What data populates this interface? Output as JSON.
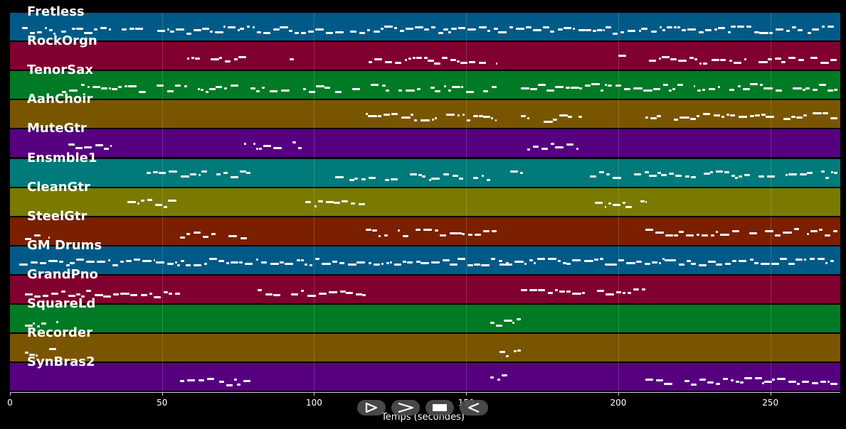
{
  "app": {
    "xlabel": "Temps (secondes)",
    "ticks": [
      0,
      50,
      100,
      150,
      200,
      250
    ],
    "xlim": [
      0,
      273
    ]
  },
  "controls": [
    {
      "name": "play-button",
      "icon": "play-icon"
    },
    {
      "name": "forward-button",
      "icon": "forward-icon"
    },
    {
      "name": "stop-button",
      "icon": "stop-icon"
    },
    {
      "name": "rewind-button",
      "icon": "rewind-icon"
    }
  ],
  "tracks": [
    {
      "name": "Fretless",
      "color": "#005a87",
      "segments": [
        [
          4,
          271,
          0.6
        ]
      ]
    },
    {
      "name": "RockOrgn",
      "color": "#800030",
      "segments": [
        [
          57,
          78,
          0.5
        ],
        [
          92,
          94,
          0.4
        ],
        [
          118,
          160,
          0.5
        ],
        [
          179,
          181,
          0.3
        ],
        [
          200,
          203,
          0.4
        ],
        [
          210,
          272,
          0.45
        ]
      ]
    },
    {
      "name": "TenorSax",
      "color": "#007a25",
      "segments": [
        [
          17,
          160,
          0.5
        ],
        [
          168,
          272,
          0.5
        ]
      ]
    },
    {
      "name": "AahChoir",
      "color": "#7a5500",
      "segments": [
        [
          117,
          160,
          0.5
        ],
        [
          168,
          188,
          0.4
        ],
        [
          209,
          272,
          0.5
        ]
      ]
    },
    {
      "name": "MuteGtr",
      "color": "#560080",
      "segments": [
        [
          17,
          33,
          0.55
        ],
        [
          77,
          96,
          0.55
        ],
        [
          170,
          187,
          0.55
        ]
      ]
    },
    {
      "name": "Ensmble1",
      "color": "#007a7a",
      "segments": [
        [
          45,
          79,
          0.45
        ],
        [
          107,
          158,
          0.45
        ],
        [
          163,
          171,
          0.35
        ],
        [
          189,
          272,
          0.45
        ]
      ]
    },
    {
      "name": "CleanGtr",
      "color": "#7a7a00",
      "segments": [
        [
          36,
          55,
          0.5
        ],
        [
          97,
          117,
          0.5
        ],
        [
          189,
          209,
          0.5
        ]
      ]
    },
    {
      "name": "SteelGtr",
      "color": "#7a2000",
      "segments": [
        [
          5,
          13,
          0.5
        ],
        [
          56,
          78,
          0.5
        ],
        [
          117,
          160,
          0.5
        ],
        [
          209,
          272,
          0.5
        ]
      ]
    },
    {
      "name": "GM Drums",
      "color": "#005a87",
      "segments": [
        [
          3,
          271,
          0.65
        ],
        [
          161,
          164,
          0.35
        ]
      ]
    },
    {
      "name": "GrandPno",
      "color": "#800030",
      "segments": [
        [
          5,
          56,
          0.55
        ],
        [
          77,
          117,
          0.55
        ],
        [
          168,
          209,
          0.55
        ]
      ]
    },
    {
      "name": "SquareLd",
      "color": "#007a25",
      "segments": [
        [
          5,
          16,
          0.45
        ],
        [
          158,
          168,
          0.4
        ]
      ]
    },
    {
      "name": "Recorder",
      "color": "#7a5500",
      "segments": [
        [
          5,
          16,
          0.45
        ],
        [
          161,
          168,
          0.4
        ]
      ]
    },
    {
      "name": "SynBras2",
      "color": "#560080",
      "segments": [
        [
          56,
          79,
          0.55
        ],
        [
          158,
          168,
          0.45
        ],
        [
          209,
          272,
          0.55
        ]
      ]
    }
  ]
}
